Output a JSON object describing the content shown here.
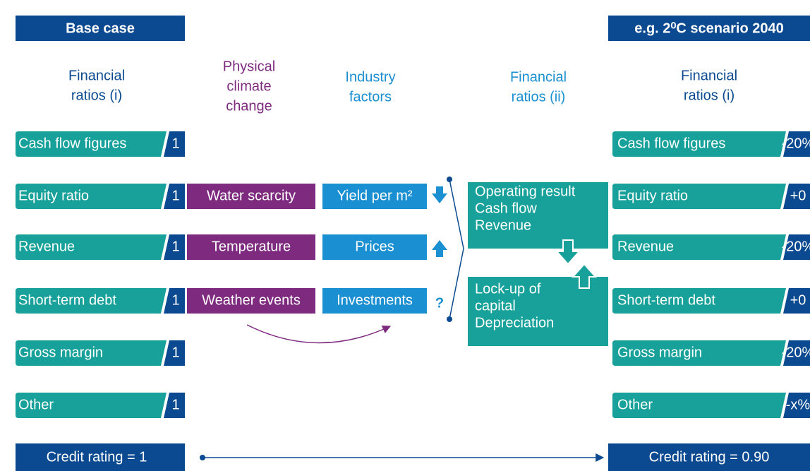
{
  "header": {
    "left": "Base case",
    "right": "e.g. 2⁰C scenario 2040"
  },
  "columns": {
    "left": [
      "Financial",
      "ratios (i)"
    ],
    "physical": [
      "Physical",
      "climate",
      "change"
    ],
    "industry": [
      "Industry",
      "factors"
    ],
    "financial_ii": [
      "Financial",
      "ratios (ii)"
    ],
    "right": [
      "Financial",
      "ratios (i)"
    ]
  },
  "left_rows": [
    {
      "label": "Cash flow figures",
      "value": "1"
    },
    {
      "label": "Equity ratio",
      "value": "1"
    },
    {
      "label": "Revenue",
      "value": "1"
    },
    {
      "label": "Short-term debt",
      "value": "1"
    },
    {
      "label": "Gross margin",
      "value": "1"
    },
    {
      "label": "Other",
      "value": "1"
    }
  ],
  "physical": [
    "Water scarcity",
    "Temperature",
    "Weather events"
  ],
  "industry": [
    "Yield per m²",
    "Prices",
    "Investments"
  ],
  "industry_marks": [
    "?"
  ],
  "financial_ii": [
    [
      "Operating result",
      "Cash flow",
      "Revenue"
    ],
    [
      "Lock-up of",
      "capital",
      "Depreciation"
    ]
  ],
  "right_rows": [
    {
      "label": "Cash flow figures",
      "value": "-20%"
    },
    {
      "label": "Equity ratio",
      "value": "+0"
    },
    {
      "label": "Revenue",
      "value": "-20%"
    },
    {
      "label": "Short-term debt",
      "value": "+0"
    },
    {
      "label": "Gross margin",
      "value": "-20%"
    },
    {
      "label": "Other",
      "value": "-x%"
    }
  ],
  "credit": {
    "left": "Credit rating = 1",
    "right": "Credit rating = 0.90"
  }
}
